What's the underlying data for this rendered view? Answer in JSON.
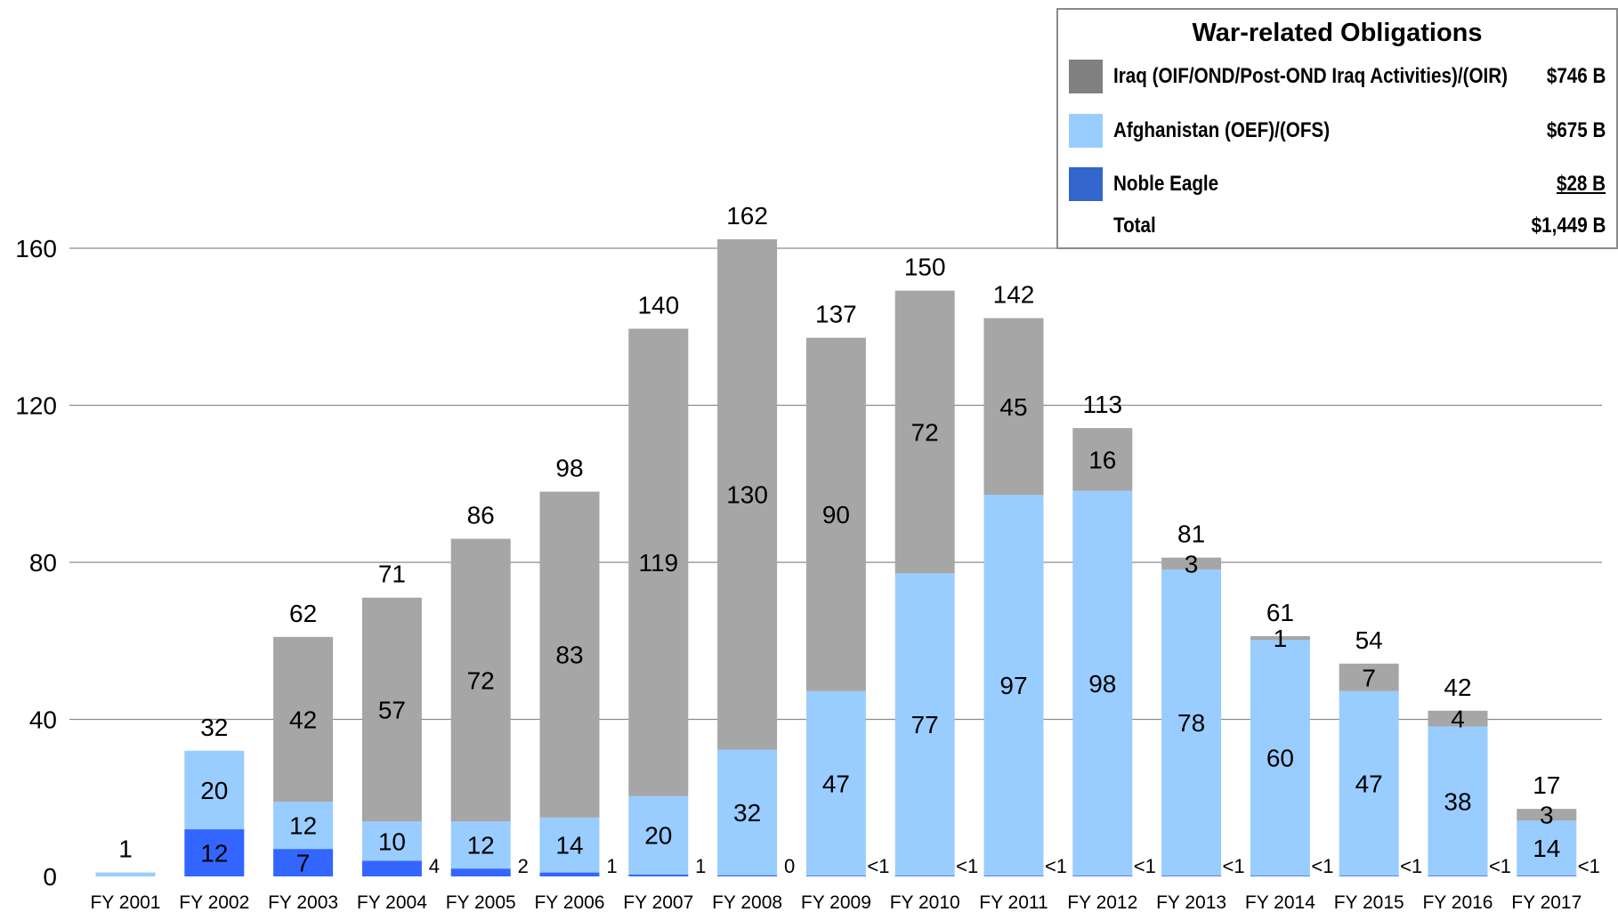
{
  "chart_data": {
    "type": "bar",
    "stacked": true,
    "ylim": [
      0,
      160
    ],
    "yticks": [
      0,
      40,
      80,
      120,
      160
    ],
    "grid": true,
    "legend_position": "top-right",
    "categories": [
      "FY 2001",
      "FY 2002",
      "FY 2003",
      "FY 2004",
      "FY 2005",
      "FY 2006",
      "FY 2007",
      "FY 2008",
      "FY 2009",
      "FY 2010",
      "FY 2011",
      "FY 2012",
      "FY 2013",
      "FY 2014",
      "FY 2015",
      "FY 2016",
      "FY 2017"
    ],
    "series": [
      {
        "name": "Noble Eagle",
        "color": "#3366ff",
        "values": [
          0,
          12,
          7,
          4,
          2,
          1,
          0.5,
          0.3,
          0.2,
          0.2,
          0.2,
          0.2,
          0.2,
          0.2,
          0.2,
          0.2,
          0.2
        ],
        "labels": [
          "",
          "12",
          "7",
          "4",
          "2",
          "1",
          "1",
          "0",
          "<1",
          "<1",
          "<1",
          "<1",
          "<1",
          "<1",
          "<1",
          "<1",
          "<1"
        ]
      },
      {
        "name": "Afghanistan (OEF)/(OFS)",
        "color": "#99ccff",
        "values": [
          1,
          20,
          12,
          10,
          12,
          14,
          20,
          32,
          47,
          77,
          97,
          98,
          78,
          60,
          47,
          38,
          14
        ],
        "labels": [
          "",
          "20",
          "12",
          "10",
          "12",
          "14",
          "20",
          "32",
          "47",
          "77",
          "97",
          "98",
          "78",
          "60",
          "47",
          "38",
          "14"
        ]
      },
      {
        "name": "Iraq (OIF/OND/Post-OND Iraq Activities)/(OIR)",
        "color": "#a6a6a6",
        "values": [
          0,
          0,
          42,
          57,
          72,
          83,
          119,
          130,
          90,
          72,
          45,
          16,
          3,
          1,
          7,
          4,
          3
        ],
        "labels": [
          "",
          "",
          "42",
          "57",
          "72",
          "83",
          "119",
          "130",
          "90",
          "72",
          "45",
          "16",
          "3",
          "1",
          "7",
          "4",
          "3"
        ]
      }
    ],
    "totals": [
      1,
      32,
      62,
      71,
      86,
      98,
      140,
      162,
      137,
      150,
      142,
      113,
      81,
      61,
      54,
      42,
      17
    ],
    "title": "",
    "xlabel": "",
    "ylabel": ""
  },
  "legend": {
    "title": "War-related Obligations",
    "items": [
      {
        "label": "Iraq (OIF/OND/Post-OND Iraq Activities)/(OIR)",
        "value": "$746 B",
        "color": "#808080"
      },
      {
        "label": "Afghanistan (OEF)/(OFS)",
        "value": "$675 B",
        "color": "#99ccff"
      },
      {
        "label": "Noble Eagle",
        "value": "$28 B",
        "color": "#3366cc"
      }
    ],
    "total_label": "Total",
    "total_value": "$1,449 B"
  }
}
